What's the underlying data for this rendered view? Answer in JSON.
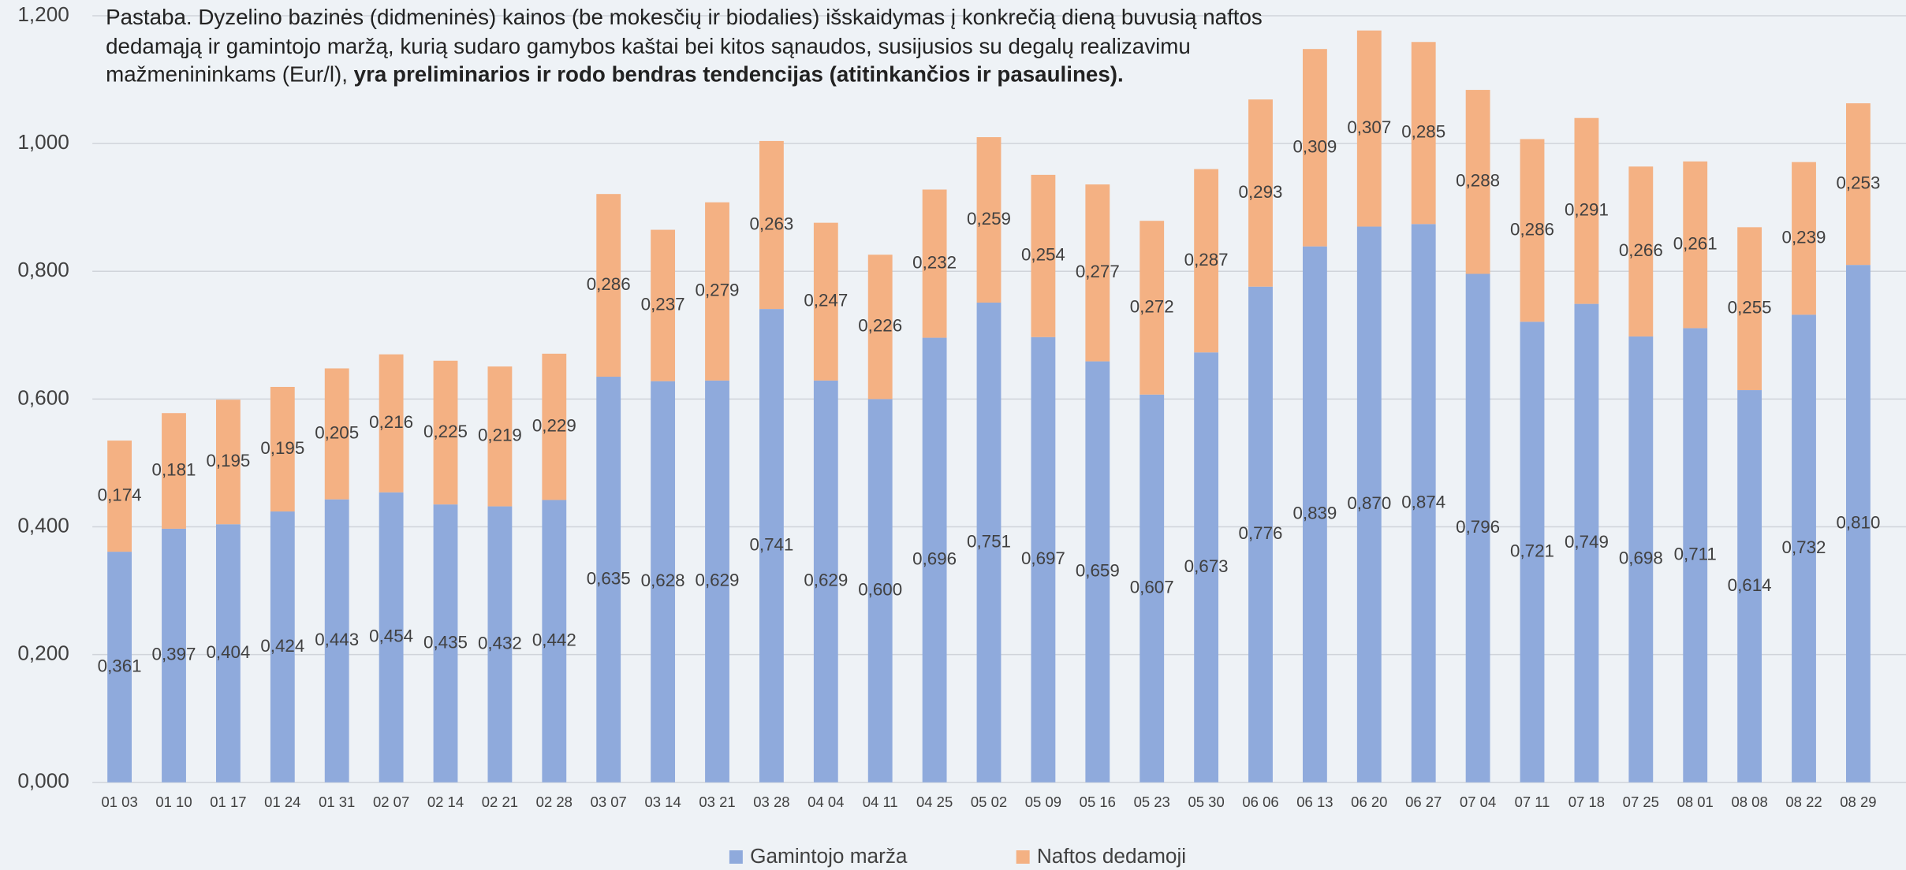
{
  "chart_data": {
    "type": "stacked_bar",
    "note": "Pastaba. Dyzelino bazinės (didmeninės) kainos (be mokesčių ir biodalies) išskaidymas į konkrečią dieną buvusią naftos dedamąją ir gamintojo maržą, kurią sudaro gamybos kaštai bei kitos sąnaudos, susijusios su degalų realizavimu mažmenininkams (Eur/l),",
    "note_bold": "yra preliminarios ir rodo bendras tendencijas (atitinkančios ir pasaulines).",
    "categories": [
      "01 03",
      "01 10",
      "01 17",
      "01 24",
      "01 31",
      "02 07",
      "02 14",
      "02 21",
      "02 28",
      "03 07",
      "03 14",
      "03 21",
      "03 28",
      "04 04",
      "04 11",
      "04 25",
      "05 02",
      "05 09",
      "05 16",
      "05 23",
      "05 30",
      "06 06",
      "06 13",
      "06 20",
      "06 27",
      "07 04",
      "07 11",
      "07 18",
      "07 25",
      "08 01",
      "08 08",
      "08 22",
      "08 29"
    ],
    "series": [
      {
        "name": "Gamintojo marža",
        "color": "#8faadc",
        "values": [
          0.361,
          0.397,
          0.404,
          0.424,
          0.443,
          0.454,
          0.435,
          0.432,
          0.442,
          0.635,
          0.628,
          0.629,
          0.741,
          0.629,
          0.6,
          0.696,
          0.751,
          0.697,
          0.659,
          0.607,
          0.673,
          0.776,
          0.839,
          0.87,
          0.874,
          0.796,
          0.721,
          0.749,
          0.698,
          0.711,
          0.614,
          0.732,
          0.81
        ],
        "value_labels": [
          "0,361",
          "0,397",
          "0,404",
          "0,424",
          "0,443",
          "0,454",
          "0,435",
          "0,432",
          "0,442",
          "0,635",
          "0,628",
          "0,629",
          "0,741",
          "0,629",
          "0,600",
          "0,696",
          "0,751",
          "0,697",
          "0,659",
          "0,607",
          "0,673",
          "0,776",
          "0,839",
          "0,870",
          "0,874",
          "0,796",
          "0,721",
          "0,749",
          "0,698",
          "0,711",
          "0,614",
          "0,732",
          "0,810"
        ]
      },
      {
        "name": "Naftos dedamoji",
        "color": "#f4b183",
        "values": [
          0.174,
          0.181,
          0.195,
          0.195,
          0.205,
          0.216,
          0.225,
          0.219,
          0.229,
          0.286,
          0.237,
          0.279,
          0.263,
          0.247,
          0.226,
          0.232,
          0.259,
          0.254,
          0.277,
          0.272,
          0.287,
          0.293,
          0.309,
          0.307,
          0.285,
          0.288,
          0.286,
          0.291,
          0.266,
          0.261,
          0.255,
          0.239,
          0.253
        ],
        "value_labels": [
          "0,174",
          "0,181",
          "0,195",
          "0,195",
          "0,205",
          "0,216",
          "0,225",
          "0,219",
          "0,229",
          "0,286",
          "0,237",
          "0,279",
          "0,263",
          "0,247",
          "0,226",
          "0,232",
          "0,259",
          "0,254",
          "0,277",
          "0,272",
          "0,287",
          "0,293",
          "0,309",
          "0,307",
          "0,285",
          "0,288",
          "0,286",
          "0,291",
          "0,266",
          "0,261",
          "0,255",
          "0,239",
          "0,253"
        ]
      }
    ],
    "ylim": [
      0,
      1.2
    ],
    "yticks": [
      {
        "value": 0,
        "label": "0,000"
      },
      {
        "value": 0.2,
        "label": "0,200"
      },
      {
        "value": 0.4,
        "label": "0,400"
      },
      {
        "value": 0.6,
        "label": "0,600"
      },
      {
        "value": 0.8,
        "label": "0,800"
      },
      {
        "value": 1.0,
        "label": "1,000"
      },
      {
        "value": 1.2,
        "label": "1,200"
      }
    ],
    "grid": true,
    "legend": "bottom"
  }
}
